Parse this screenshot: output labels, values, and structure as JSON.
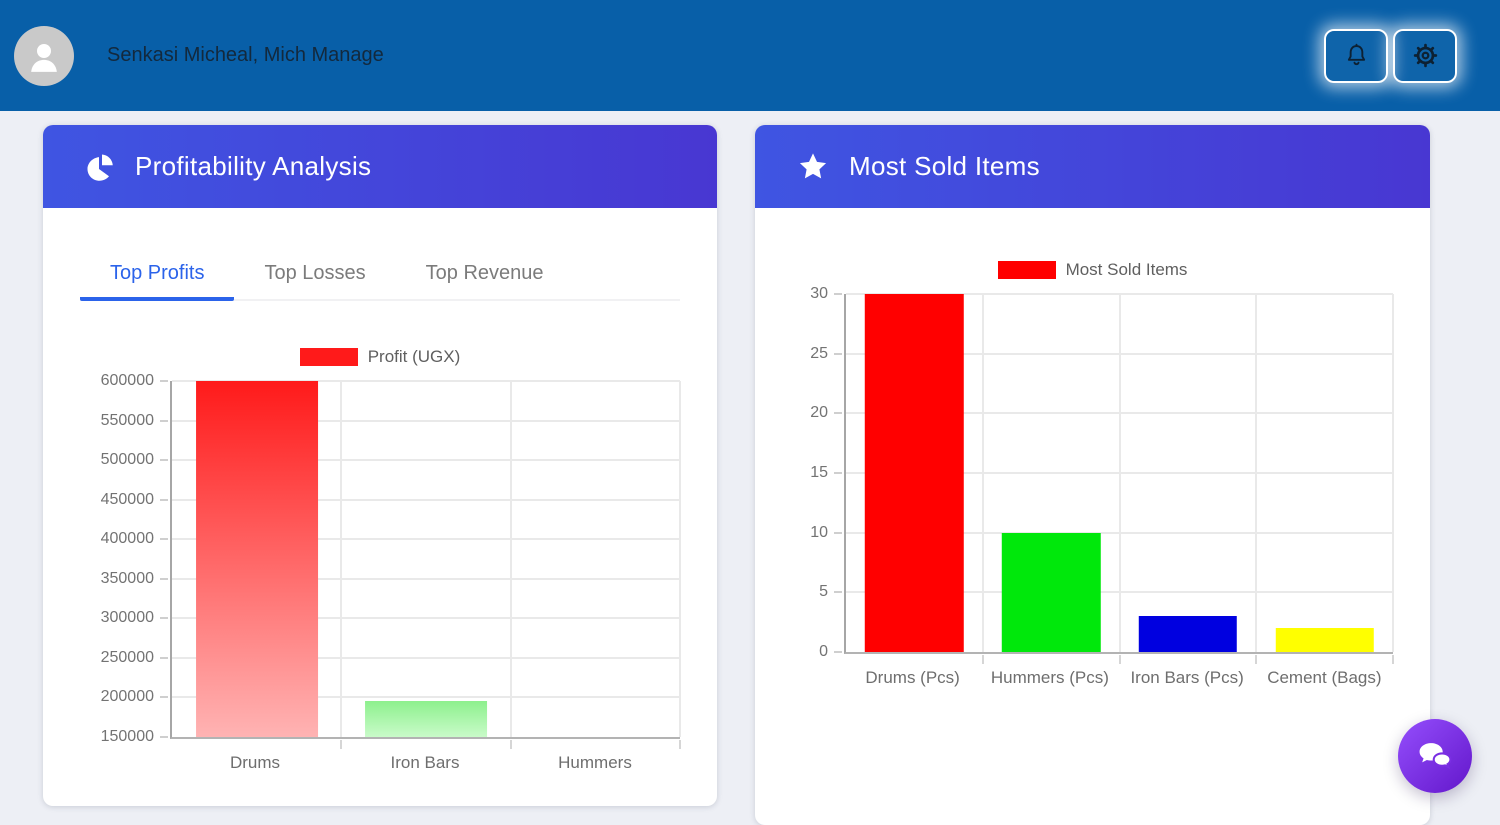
{
  "header": {
    "user_name": "Senkasi Micheal, Mich Manage",
    "notifications_icon": "bell-icon",
    "settings_icon": "gear-icon"
  },
  "cards": [
    {
      "title": "Profitability Analysis",
      "icon": "pie-chart-icon",
      "tabs": [
        {
          "label": "Top Profits",
          "active": true
        },
        {
          "label": "Top Losses",
          "active": false
        },
        {
          "label": "Top Revenue",
          "active": false
        }
      ]
    },
    {
      "title": "Most Sold Items",
      "icon": "star-icon"
    }
  ],
  "chart_data": [
    {
      "type": "bar",
      "title": "Top Profits",
      "legend": "Profit (UGX)",
      "legend_color": "#ff1a1a",
      "legend_position": "top",
      "grid": true,
      "categories": [
        "Drums",
        "Iron Bars",
        "Hummers"
      ],
      "values": [
        600000,
        195000,
        150000
      ],
      "ylim": [
        150000,
        600000
      ],
      "ystep": 50000,
      "bar_colors": [
        {
          "top": "#ff1a1a",
          "bottom": "#ffb3b3"
        },
        {
          "top": "#8df08d",
          "bottom": "#c9fbc9"
        },
        {
          "top": "#ffffff",
          "bottom": "#ffffff"
        }
      ]
    },
    {
      "type": "bar",
      "title": "Most Sold Items",
      "legend": "Most Sold Items",
      "legend_color": "#ff0000",
      "legend_position": "top",
      "grid": true,
      "categories": [
        "Drums (Pcs)",
        "Hummers (Pcs)",
        "Iron Bars (Pcs)",
        "Cement (Bags)"
      ],
      "values": [
        30,
        10,
        3,
        2
      ],
      "ylim": [
        0,
        30
      ],
      "ystep": 5,
      "bar_colors": [
        {
          "top": "#ff0000",
          "bottom": "#ff0000"
        },
        {
          "top": "#00e80b",
          "bottom": "#00e80b"
        },
        {
          "top": "#0000e0",
          "bottom": "#0000e0"
        },
        {
          "top": "#ffff00",
          "bottom": "#ffff00"
        }
      ]
    }
  ],
  "fab": {
    "icon": "chat-icon"
  },
  "colors": {
    "topbar": "#085fa8",
    "card_header_gradient": [
      "#3f55e2",
      "#4837d2"
    ],
    "tab_active": "#2b63ea",
    "fab_gradient": [
      "#8d46f5",
      "#6a1fd2"
    ],
    "page_bg": "#edeff5"
  }
}
